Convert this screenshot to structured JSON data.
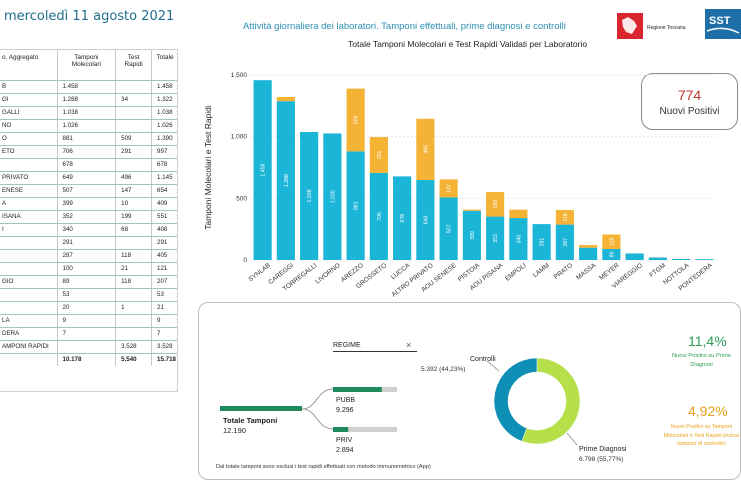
{
  "page": {
    "date_title": "mercoledì 11 agosto 2021",
    "header_title": "Attività giornaliera dei laboratori. Tamponi effettuali, prime diagnosi e controlli",
    "logo_toscana": "Regione Toscana",
    "logo_sst": "SST"
  },
  "table": {
    "headers": [
      "o. Aggregato",
      "Tamponi Molecolari",
      "Test Rapidi",
      "Totale"
    ],
    "rows": [
      [
        "B",
        "1.458",
        "",
        "1.458"
      ],
      [
        "GI",
        "1.288",
        "34",
        "1.322"
      ],
      [
        "GALLI",
        "1.038",
        "",
        "1.038"
      ],
      [
        "NO",
        "1.026",
        "",
        "1.026"
      ],
      [
        "O",
        "881",
        "509",
        "1.390"
      ],
      [
        "ETO",
        "706",
        "291",
        "997"
      ],
      [
        "",
        "678",
        "",
        "678"
      ],
      [
        "PRIVATO",
        "649",
        "496",
        "1.145"
      ],
      [
        "ENESE",
        "507",
        "147",
        "654"
      ],
      [
        "A",
        "399",
        "10",
        "409"
      ],
      [
        "ISANA",
        "352",
        "199",
        "551"
      ],
      [
        "I",
        "340",
        "68",
        "408"
      ],
      [
        "",
        "291",
        "",
        "291"
      ],
      [
        "",
        "287",
        "118",
        "405"
      ],
      [
        "",
        "100",
        "21",
        "121"
      ],
      [
        "GIO",
        "89",
        "118",
        "207"
      ],
      [
        "",
        "53",
        "",
        "53"
      ],
      [
        "",
        "20",
        "1",
        "21"
      ],
      [
        "LA",
        "9",
        "",
        "9"
      ],
      [
        "DERA",
        "7",
        "",
        "7"
      ],
      [
        "AMPONI RAPIDI",
        "",
        "3.528",
        "3.528"
      ]
    ],
    "total": [
      "",
      "10.178",
      "5.540",
      "15.718"
    ]
  },
  "kpi": {
    "value": "774",
    "label": "Nuovi Positivi"
  },
  "chart_data": {
    "type": "bar",
    "title": "Totale Tamponi Molecolari e Test Rapidi Validati per Laboratorio",
    "ylabel": "Tamponi Molecolari e Test Rapidi",
    "ylim": [
      0,
      1500
    ],
    "yticks": [
      0,
      500,
      1000,
      1500
    ],
    "ytick_labels": [
      "0",
      "500",
      "1.000",
      "1.500"
    ],
    "legend_position": "bottom",
    "categories": [
      "SYNLAB",
      "CAREGGI",
      "TORREGALLI",
      "LIVORNO",
      "AREZZO",
      "GROSSETO",
      "LUCCA",
      "ALTRO PRIVATO",
      "AOU SENESE",
      "PISTOIA",
      "AOU PISANA",
      "EMPOLI",
      "LAMM",
      "PRATO",
      "MASSA",
      "MEYER",
      "VIAREGGIO",
      "FTGM",
      "NOTTOLA",
      "PONTEDERA"
    ],
    "series": [
      {
        "name": "Tamponi Molecolari",
        "color": "#1bb5d8",
        "values": [
          1458,
          1288,
          1038,
          1026,
          881,
          706,
          678,
          649,
          507,
          399,
          352,
          340,
          291,
          287,
          100,
          89,
          53,
          20,
          9,
          7
        ],
        "labels": [
          "1.458",
          "1.288",
          "1.038",
          "1.026",
          "881",
          "706",
          "678",
          "649",
          "507",
          "399",
          "352",
          "340",
          "291",
          "287",
          "",
          "89",
          "",
          "",
          "",
          ""
        ]
      },
      {
        "name": "Test Rapidi",
        "color": "#f5b335",
        "values": [
          0,
          34,
          0,
          0,
          509,
          291,
          0,
          496,
          147,
          10,
          199,
          68,
          0,
          118,
          21,
          118,
          0,
          1,
          0,
          0
        ],
        "labels": [
          "",
          "",
          "",
          "",
          "509",
          "291",
          "",
          "496",
          "147",
          "",
          "199",
          "",
          "",
          "118",
          "",
          "118",
          "",
          "",
          "",
          ""
        ]
      }
    ]
  },
  "regime": {
    "slicer_label": "REGIME",
    "close_glyph": "×",
    "total_label": "Totale Tamponi",
    "total_value": "12.190",
    "pubb_label": "PUBB",
    "pubb_value": "9.296",
    "pubb_share": 0.7626,
    "priv_label": "PRIV",
    "priv_value": "2.894",
    "priv_share": 0.2374
  },
  "donut": {
    "controlli_label": "Controlli",
    "controlli_value": "5.392 (44,23%)",
    "controlli_share": 0.4423,
    "controlli_color": "#0e8fb6",
    "prime_label": "Prime Diagnosi",
    "prime_value": "6.798 (55,77%)",
    "prime_share": 0.5577,
    "prime_color": "#b5e04a"
  },
  "pct": {
    "p1_value": "11,4%",
    "p1_label": "Nuovi Positivi su Prime Diagnosi",
    "p2_value": "4,92%",
    "p2_label": "Nuovi Positivi su Tamponi Molecolari e Test Rapidi (inclusi tamponi di controllo)"
  },
  "footnote": "Dal totale tamponi sono esclusi i test rapidi effettuati con metodo immunometrico (App)"
}
